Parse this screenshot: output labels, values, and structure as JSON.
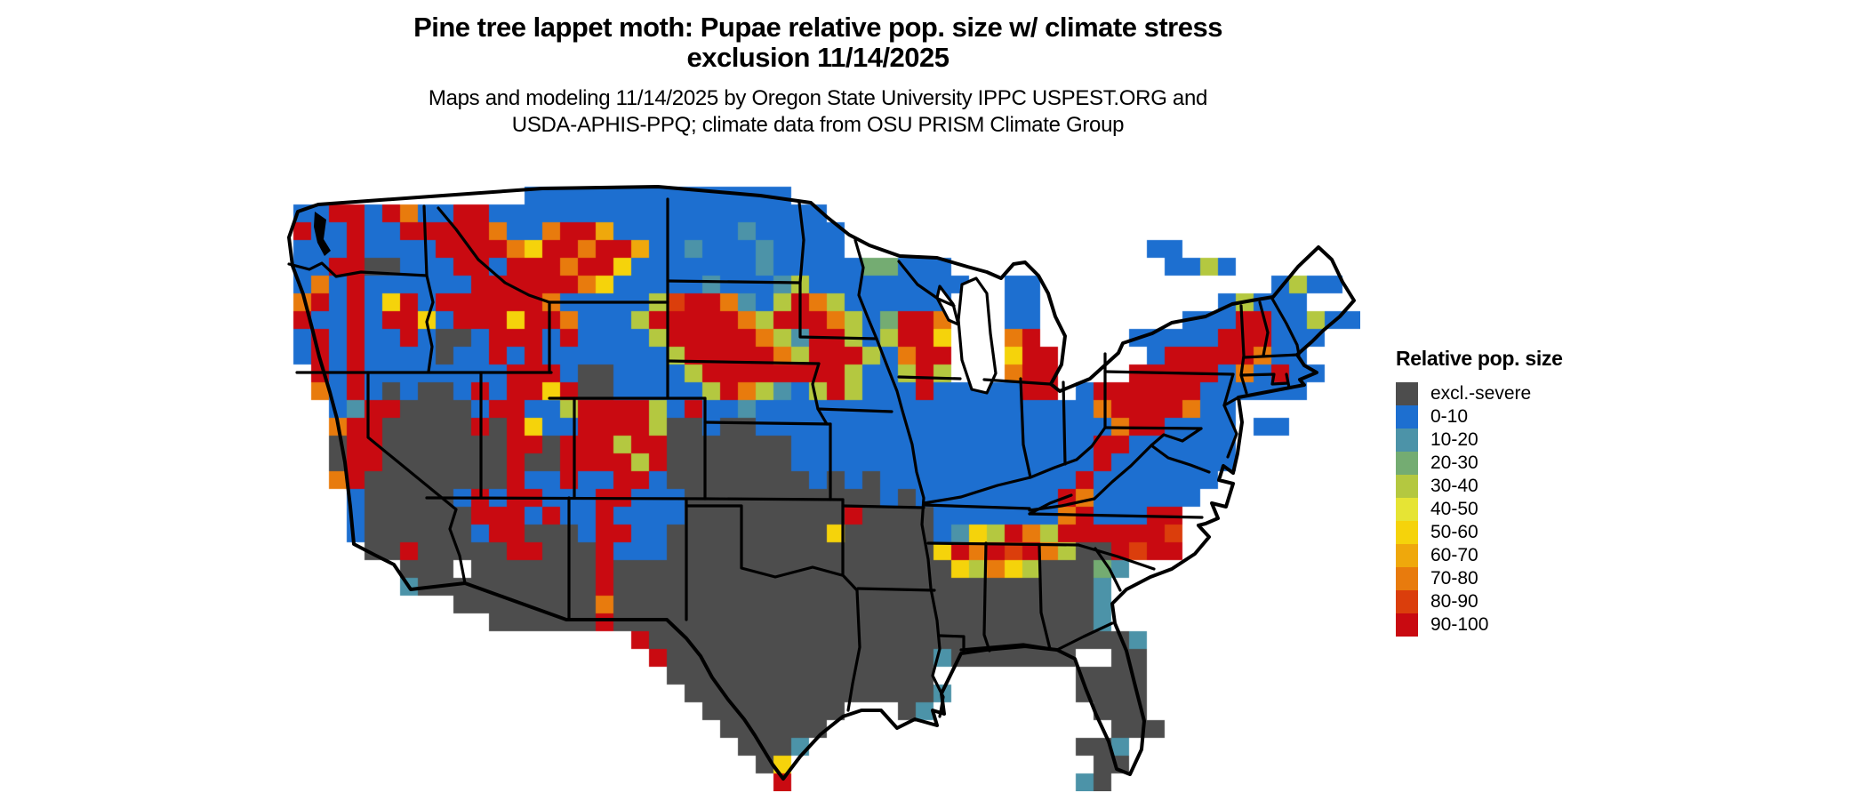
{
  "figure": {
    "title_line1": "Pine tree lappet moth: Pupae relative pop. size w/ climate stress",
    "title_line2": "exclusion 11/14/2025",
    "subtitle_line1": "Maps and modeling 11/14/2025 by Oregon State University IPPC USPEST.ORG and",
    "subtitle_line2": "USDA-APHIS-PPQ; climate data from OSU PRISM Climate Group"
  },
  "legend": {
    "title": "Relative pop. size",
    "entries": [
      {
        "label": "excl.-severe",
        "color": "#4D4D4D"
      },
      {
        "label": "0-10",
        "color": "#1D6FD0"
      },
      {
        "label": "10-20",
        "color": "#4C93A8"
      },
      {
        "label": "20-30",
        "color": "#74AC72"
      },
      {
        "label": "30-40",
        "color": "#B4C840"
      },
      {
        "label": "40-50",
        "color": "#E6E434"
      },
      {
        "label": "50-60",
        "color": "#F5D30B"
      },
      {
        "label": "60-70",
        "color": "#EFA80C"
      },
      {
        "label": "70-80",
        "color": "#E87B0D"
      },
      {
        "label": "80-90",
        "color": "#DB3E0C"
      },
      {
        "label": "90-100",
        "color": "#C90A11"
      }
    ]
  },
  "map": {
    "region": "Contiguous United States",
    "border_color": "#000000",
    "water_color": "#FFFFFF",
    "cell_size": 20,
    "palette": {
      "B": "#1D6FD0",
      "G": "#4D4D4D",
      "t": "#4C93A8",
      "n": "#74AC72",
      "g": "#B4C840",
      "y": "#E6E434",
      "Y": "#F5D30B",
      "A": "#EFA80C",
      "O": "#E87B0D",
      "D": "#DB3E0C",
      "R": "#C90A11"
    },
    "grid": [
      ".............................................................",
      ".............................................................",
      "..............BBBBBBBBBBBBBBB...............................",
      ".BBRRBROBBRRBBBBBBBBBBBBBBBBBBB.............................",
      ".RBBRBBRRRRROBBORRABBBBBBBtBBBBB............................",
      ".BBBRBBBBRRRROYRRORRABBtBBBtBBBB.................BB..",
      ".BBRRGGBBBRRBRRRORRYBBBBBBBtBBBBBnnBBB............BBgB.",
      ".BOBRBBBBBBRRRRRROYBBBBBtBBBtgBBBBBBBBB..BB.............BgBB.",
      ".ORBRBYRBRRRRRROBBBBBgDRROtBgROgBBBBBB...BB..........BgBBB.",
      ".RBBRBRRYBRRRYRROBBBgRRRRROgRRROgBnRRO...BB........BBBRRBBgBB",
      ".BRBRBBRBGGBRRRBRBBBBgRRRRROgtRRgBgRRY...OR.....BBBBBRRRBBB..",
      ".BRBRBBBBGBBRBRBBBBBBBgRRRRROgRRRgBORR...YRR.....BRRRRROBB...",
      "..RBRBBBBBBBBRRRBGGBBBBgRRRRRRRRgBBgRg...ORR....RRRRRBOBRBB..",
      "..OBRBGBGGBRBRRYRGGBBBBBgROgtBgRgBBBRBBBBBRR.BRRRRRRBBBBBB...",
      "...BtRRGGGGBRRBBgRRRRgBRBBtBBBBBBBBBBBBBBBBBBBORRRROBB.......",
      "...ORRGGGGGRGRYBBRRRRgGGBGGBBBBBBBBBBBBBBBBBBBBORRBBBB.BB....",
      "...GRRGGGGGGGRRGRRRgRRGGGGGGGBBBBBBBBBBBBBBBBBRRBBBBBB.......",
      "...GRRGGGGGGGRGGRRRRgRGGGGGGGBBBBBBBBBBBBBBBBBRBBBBBBB.......",
      "...ORGGGGGGGGRBBRBBRRBGGGGGGGGBGBGBBBBBBBBBBBRBBBBBBB........",
      "....BGGGGGBRBRRBBBRRBBBGGGGGGGGGGGBGBBBBBBBBROBBBBBB.........",
      "....BGGGGGGRRRBRBBRBBBBGGGGGGGGGRGGGGBBBBBBBORBBBRR..........",
      "....BGGGGGGBRRGGGBRRBBGGGGGGGGGYGGGGGBtYgROgRRRRRRD..........",
      ".....GGRGGGGGRRGGGRBBBGGGGGGGGGGGGGGGYRORDROgGGRDRR..........",
      ".......GGG.GGGGGGGRGGGGGGGGGGGGGGGGGGGYgOYgGGGnt.............",
      ".......tGGGGGGGGGGRGGGGGGGGGGGGGGGGGGGGGGGGGGGt..............",
      "..........GGGGGGGGOGGGGGGGGGGGGGGGGGGGGGGGGGGGt..............",
      "............GGGGGGRGGGGGGGGGGGGGGGGGGGGGGGGGGGt..............",
      "....................RGGGGGGGGGGGGGGGGGGGGGGGGGGGt............",
      ".....................RGGGGGGGGGGGGGGGtGGGGGGG..GG............",
      "......................GGGGGGGGGGGGGGG........GGGG............",
      ".......................GGGGGGGGGGGGGGt.......GGGG............",
      "........................GGGGGGGG...Gt.........GGG............",
      ".........................GGGGGG................GGG...........",
      "..........................GGGt...............GGt.............",
      "...........................GY.................GG.............",
      "............................R................tG.............."
    ]
  }
}
